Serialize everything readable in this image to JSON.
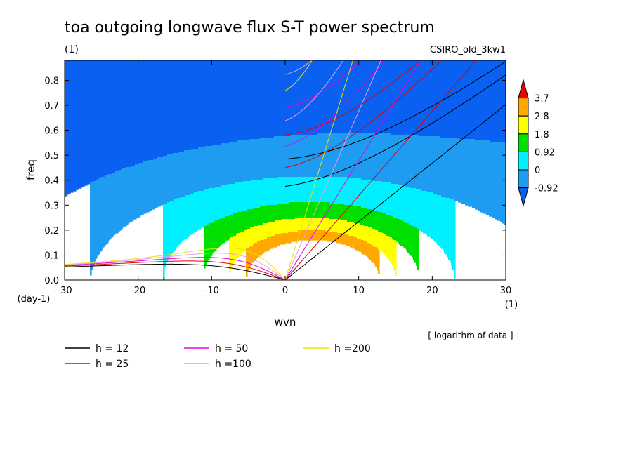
{
  "chart_data": {
    "type": "heatmap",
    "title": "toa outgoing longwave flux S-T power spectrum",
    "subtitle_left": "(1)",
    "subtitle_right": "CSIRO_old_3kw1",
    "xlabel": "wvn",
    "ylabel": "freq",
    "x_unit": "(1)",
    "y_unit": "(day-1)",
    "xlim": [
      -30,
      30
    ],
    "ylim": [
      0,
      0.88
    ],
    "x_ticks": [
      -30,
      -20,
      -10,
      0,
      10,
      20,
      30
    ],
    "x_tick_labels": [
      "-30",
      "-20",
      "-10",
      "0",
      "10",
      "20",
      "30"
    ],
    "y_ticks": [
      0.0,
      0.1,
      0.2,
      0.3,
      0.4,
      0.5,
      0.6,
      0.7,
      0.8
    ],
    "y_tick_labels": [
      "0.0",
      "0.1",
      "0.2",
      "0.3",
      "0.4",
      "0.5",
      "0.6",
      "0.7",
      "0.8"
    ],
    "note": "[ logarithm of data ]",
    "colorbar": {
      "levels": [
        -0.92,
        0,
        0.92,
        1.8,
        2.8,
        3.7
      ],
      "labels": [
        "-0.92",
        "0",
        "0.92",
        "1.8",
        "2.8",
        "3.7"
      ],
      "colors": [
        "#0a60f0",
        "#1e9cf2",
        "#00f0ff",
        "#00e000",
        "#ffff00",
        "#ffa800",
        "#f00000"
      ]
    },
    "dispersion_curves": [
      {
        "label": "h = 12",
        "h": 12,
        "color": "#000000"
      },
      {
        "label": "h = 25",
        "h": 25,
        "color": "#e00000"
      },
      {
        "label": "h = 50",
        "h": 50,
        "color": "#e600e6"
      },
      {
        "label": "h =100",
        "h": 100,
        "color": "#e89ce8"
      },
      {
        "label": "h =200",
        "h": 200,
        "color": "#e6e600"
      }
    ],
    "grid": false
  }
}
